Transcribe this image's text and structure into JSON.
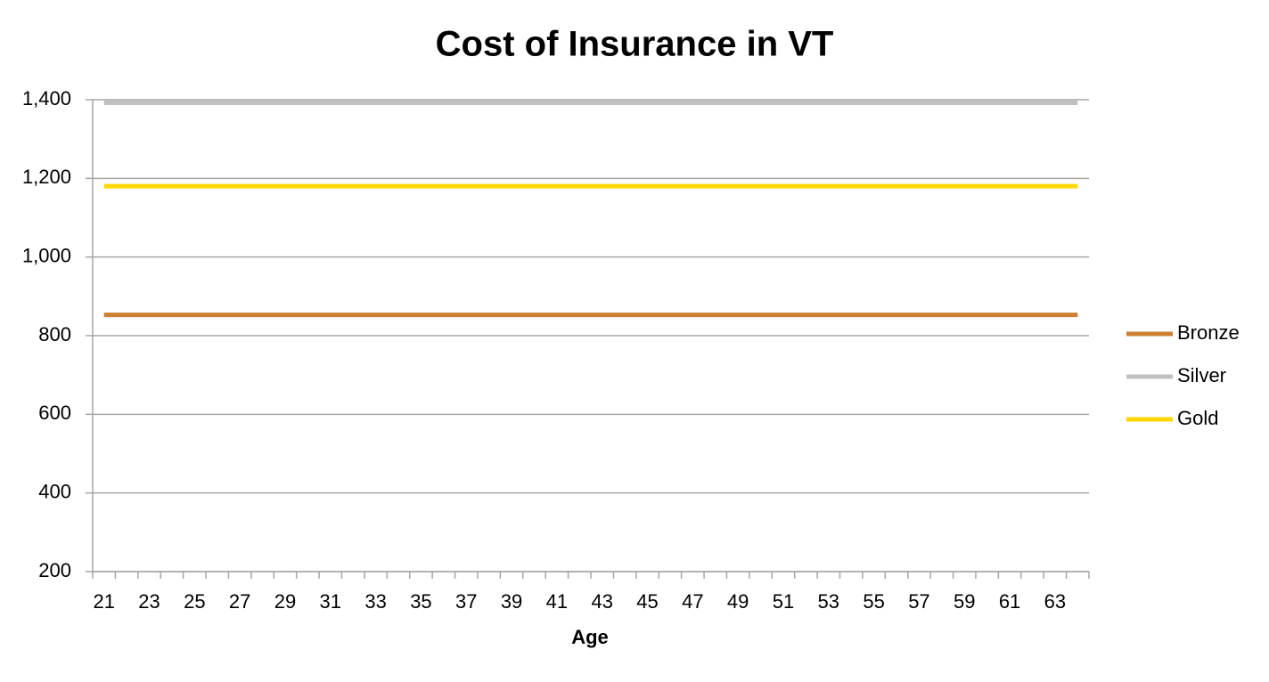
{
  "chart_data": {
    "type": "line",
    "title": "Cost of Insurance in VT",
    "x_label": "Age",
    "categories": [
      "21",
      null,
      "23",
      null,
      "25",
      null,
      "27",
      null,
      "29",
      null,
      "31",
      null,
      "33",
      null,
      "35",
      null,
      "37",
      null,
      "39",
      null,
      "41",
      null,
      "43",
      null,
      "45",
      null,
      "47",
      null,
      "49",
      null,
      "51",
      null,
      "53",
      null,
      "55",
      null,
      "57",
      null,
      "59",
      null,
      "61",
      null,
      "63",
      null
    ],
    "series": [
      {
        "name": "Bronze",
        "color": "#cd7f32",
        "values": [
          853,
          853,
          853,
          853,
          853,
          853,
          853,
          853,
          853,
          853,
          853,
          853,
          853,
          853,
          853,
          853,
          853,
          853,
          853,
          853,
          853,
          853,
          853,
          853,
          853,
          853,
          853,
          853,
          853,
          853,
          853,
          853,
          853,
          853,
          853,
          853,
          853,
          853,
          853,
          853,
          853,
          853,
          853,
          853
        ]
      },
      {
        "name": "Silver",
        "color": "#c0c0c0",
        "values": [
          1392,
          1392,
          1392,
          1392,
          1392,
          1392,
          1392,
          1392,
          1392,
          1392,
          1392,
          1392,
          1392,
          1392,
          1392,
          1392,
          1392,
          1392,
          1392,
          1392,
          1392,
          1392,
          1392,
          1392,
          1392,
          1392,
          1392,
          1392,
          1392,
          1392,
          1392,
          1392,
          1392,
          1392,
          1392,
          1392,
          1392,
          1392,
          1392,
          1392,
          1392,
          1392,
          1392,
          1392
        ]
      },
      {
        "name": "Gold",
        "color": "#ffd700",
        "values": [
          1180,
          1180,
          1180,
          1180,
          1180,
          1180,
          1180,
          1180,
          1180,
          1180,
          1180,
          1180,
          1180,
          1180,
          1180,
          1180,
          1180,
          1180,
          1180,
          1180,
          1180,
          1180,
          1180,
          1180,
          1180,
          1180,
          1180,
          1180,
          1180,
          1180,
          1180,
          1180,
          1180,
          1180,
          1180,
          1180,
          1180,
          1180,
          1180,
          1180,
          1180,
          1180,
          1180,
          1180
        ]
      }
    ],
    "ylim": [
      200,
      1400
    ],
    "yticks": [
      200,
      400,
      600,
      800,
      {
        "value": 1000,
        "label": "1,000"
      },
      {
        "value": 1200,
        "label": "1,200"
      },
      {
        "value": 1400,
        "label": "1,400"
      }
    ],
    "grid": true,
    "legend": "right"
  }
}
